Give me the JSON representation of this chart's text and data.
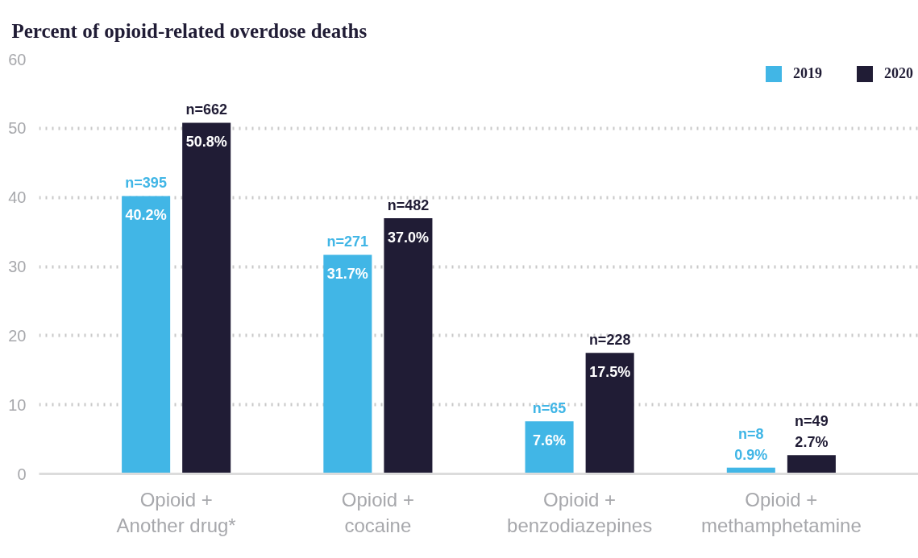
{
  "chart_data": {
    "type": "bar",
    "title": "Percent of opioid-related overdose deaths",
    "categories": [
      "Opioid +\nAnother drug*",
      "Opioid +\ncocaine",
      "Opioid +\nbenzodiazepines",
      "Opioid +\nmethamphetamine"
    ],
    "series": [
      {
        "name": "2019",
        "color": "#41b6e6",
        "values": [
          40.2,
          31.7,
          7.6,
          0.9
        ],
        "value_labels": [
          "40.2%",
          "31.7%",
          "7.6%",
          "0.9%"
        ]
      },
      {
        "name": "2020",
        "color": "#201c35",
        "values": [
          50.8,
          37.0,
          17.5,
          2.7
        ],
        "value_labels": [
          "50.8%",
          "37.0%",
          "17.5%",
          "2.7%"
        ]
      }
    ],
    "ylim": [
      0,
      60
    ],
    "yticks": [
      0,
      10,
      20,
      30,
      40,
      50,
      60
    ],
    "grid": "y",
    "legend": "top right",
    "annotations": [
      "n=395",
      "n=271",
      "n=65",
      "n=8",
      "n=662",
      "n=482",
      "n=228",
      "n=49"
    ]
  }
}
